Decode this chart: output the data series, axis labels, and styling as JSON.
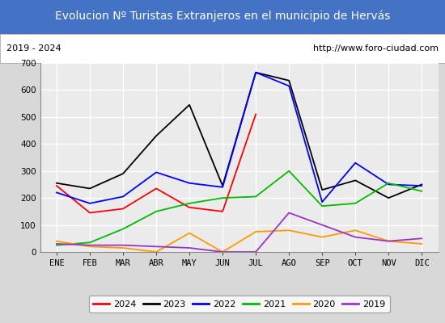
{
  "title": "Evolucion Nº Turistas Extranjeros en el municipio de Hervás",
  "subtitle_left": "2019 - 2024",
  "subtitle_right": "http://www.foro-ciudad.com",
  "months": [
    "ENE",
    "FEB",
    "MAR",
    "ABR",
    "MAY",
    "JUN",
    "JUL",
    "AGO",
    "SEP",
    "OCT",
    "NOV",
    "DIC"
  ],
  "series": {
    "2024": [
      245,
      145,
      160,
      235,
      165,
      150,
      510,
      null,
      null,
      null,
      null,
      null
    ],
    "2023": [
      255,
      235,
      290,
      430,
      545,
      245,
      665,
      635,
      230,
      265,
      200,
      250
    ],
    "2022": [
      220,
      180,
      205,
      295,
      255,
      240,
      665,
      615,
      185,
      330,
      250,
      245
    ],
    "2021": [
      25,
      35,
      85,
      150,
      180,
      200,
      205,
      300,
      170,
      180,
      255,
      225
    ],
    "2020": [
      40,
      20,
      15,
      0,
      70,
      0,
      75,
      80,
      55,
      80,
      40,
      30
    ],
    "2019": [
      30,
      25,
      25,
      20,
      15,
      0,
      0,
      145,
      100,
      55,
      40,
      50
    ]
  },
  "colors": {
    "2024": "#ff0000",
    "2023": "#000000",
    "2022": "#0000ff",
    "2021": "#00bb00",
    "2020": "#ff9900",
    "2019": "#9933cc"
  },
  "ylim": [
    0,
    700
  ],
  "yticks": [
    0,
    100,
    200,
    300,
    400,
    500,
    600,
    700
  ],
  "title_bg": "#4472c4",
  "title_color": "#ffffff",
  "title_fontsize": 10,
  "plot_bg": "#ebebeb",
  "grid_color": "#ffffff",
  "outer_bg": "#d8d8d8",
  "box_bg": "#ffffff",
  "legend_years": [
    "2024",
    "2023",
    "2022",
    "2021",
    "2020",
    "2019"
  ]
}
